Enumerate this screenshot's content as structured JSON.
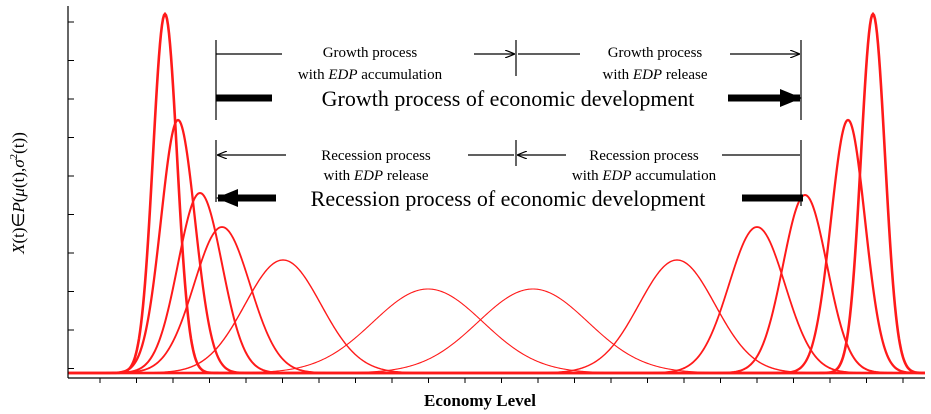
{
  "axes": {
    "y_label_parts": [
      "X",
      "(t)∈",
      "P",
      "(",
      "μ",
      "(t),",
      "σ",
      "2",
      "(t))"
    ],
    "x_label": "Economy Level"
  },
  "growth": {
    "left": {
      "title": "Growth process",
      "prefix": "with ",
      "em": "EDP",
      "suffix": " accumulation"
    },
    "right": {
      "title": "Growth process",
      "prefix": "with ",
      "em": "EDP",
      "suffix": " release"
    },
    "main": "Growth process of economic development"
  },
  "recession": {
    "left": {
      "title": "Recession process",
      "prefix": "with ",
      "em": "EDP",
      "suffix": " release"
    },
    "right": {
      "title": "Recession process",
      "prefix": "with ",
      "em": "EDP",
      "suffix": " accumulation"
    },
    "main": "Recession process of economic development"
  }
}
